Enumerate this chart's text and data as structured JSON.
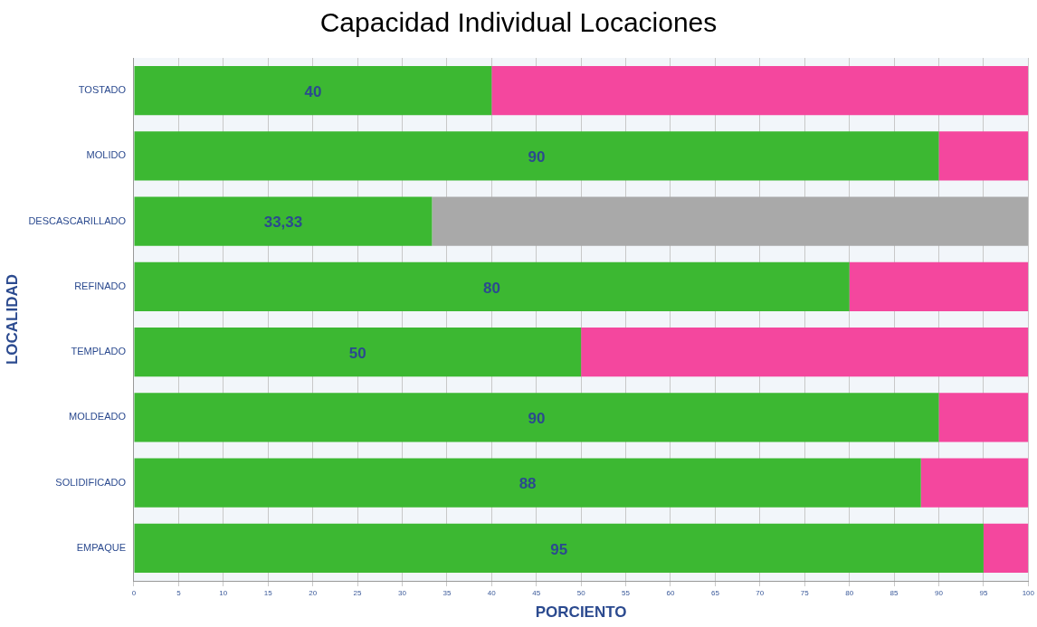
{
  "chart_data": {
    "type": "bar",
    "orientation": "horizontal",
    "stacked": true,
    "title": "Capacidad Individual Locaciones",
    "xlabel": "PORCIENTO",
    "ylabel": "LOCALIDAD",
    "categories": [
      "TOSTADO",
      "MOLIDO",
      "DESCASCARILLADO",
      "REFINADO",
      "TEMPLADO",
      "MOLDEADO",
      "SOLIDIFICADO",
      "EMPAQUE"
    ],
    "series": [
      {
        "color": "#3cb832",
        "values": [
          40,
          90,
          33.33,
          80,
          50,
          90,
          88,
          95
        ],
        "value_labels": [
          "40",
          "90",
          "33,33",
          "80",
          "50",
          "90",
          "88",
          "95"
        ]
      },
      {
        "colors": [
          "#f4479e",
          "#f4479e",
          "#a9a9a9",
          "#f4479e",
          "#f4479e",
          "#f4479e",
          "#f4479e",
          "#f4479e"
        ],
        "values": [
          60,
          10,
          66.67,
          20,
          50,
          10,
          12,
          5
        ]
      }
    ],
    "xlim": [
      0,
      100
    ],
    "xticks": [
      0,
      5,
      10,
      15,
      20,
      25,
      30,
      35,
      40,
      45,
      50,
      55,
      60,
      65,
      70,
      75,
      80,
      85,
      90,
      95,
      100
    ],
    "grid": "x"
  }
}
